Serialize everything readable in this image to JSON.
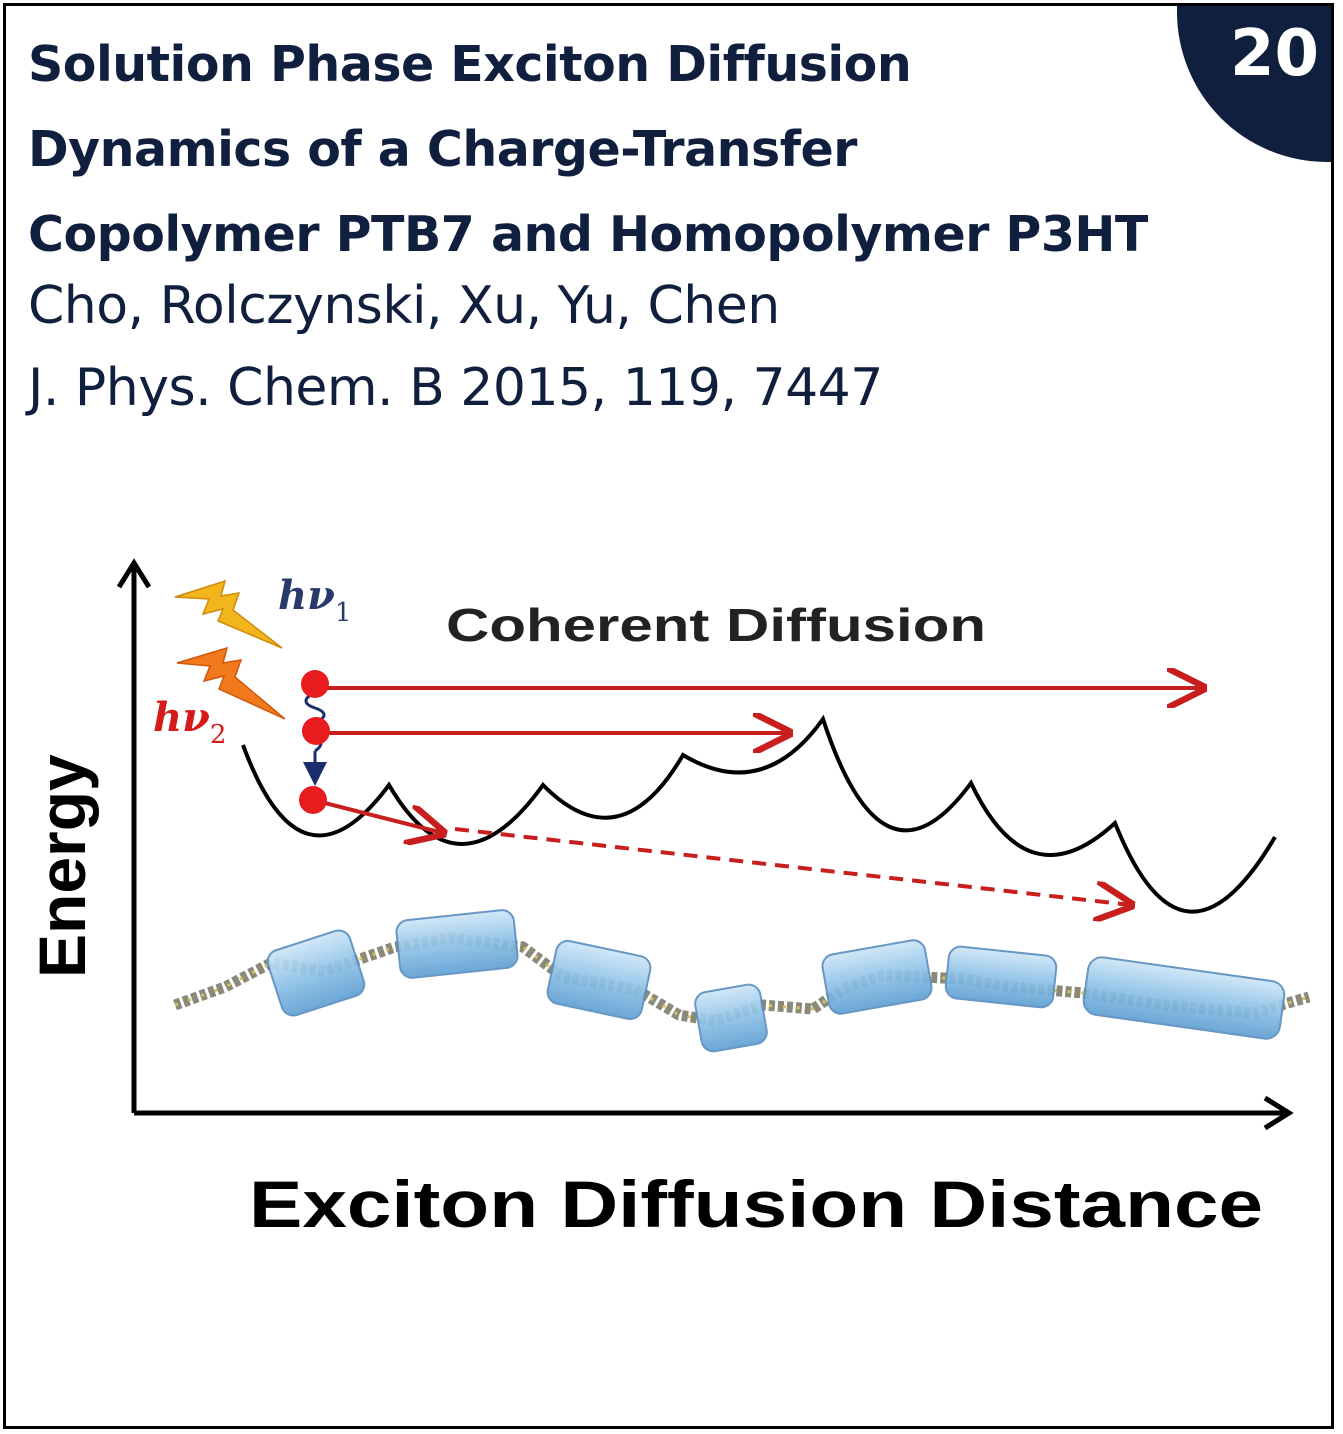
{
  "badge": {
    "number": "20"
  },
  "title": {
    "line1": "Solution Phase Exciton Diffusion",
    "line2": "Dynamics of a Charge-Transfer",
    "line3": "Copolymer PTB7 and Homopolymer P3HT"
  },
  "authors": "Cho, Rolczynski, Xu, Yu, Chen",
  "citation": "J. Phys. Chem. B 2015, 119, 7447",
  "figure": {
    "y_axis_label": "Energy",
    "x_axis_label": "Exciton Diffusion Distance",
    "heading": "Coherent Diffusion",
    "photon1": {
      "h": "h",
      "nu": "ν",
      "sub": "1"
    },
    "photon2": {
      "h": "h",
      "nu": "ν",
      "sub": "2"
    },
    "colors": {
      "navy": "#0f1f3d",
      "arrow_red": "#c81e1e",
      "exciton_red": "#e81c1c",
      "lightning_yellow": "#f2b51c",
      "lightning_orange": "#f07a1c",
      "block_blue": "#8fc2e8"
    }
  }
}
